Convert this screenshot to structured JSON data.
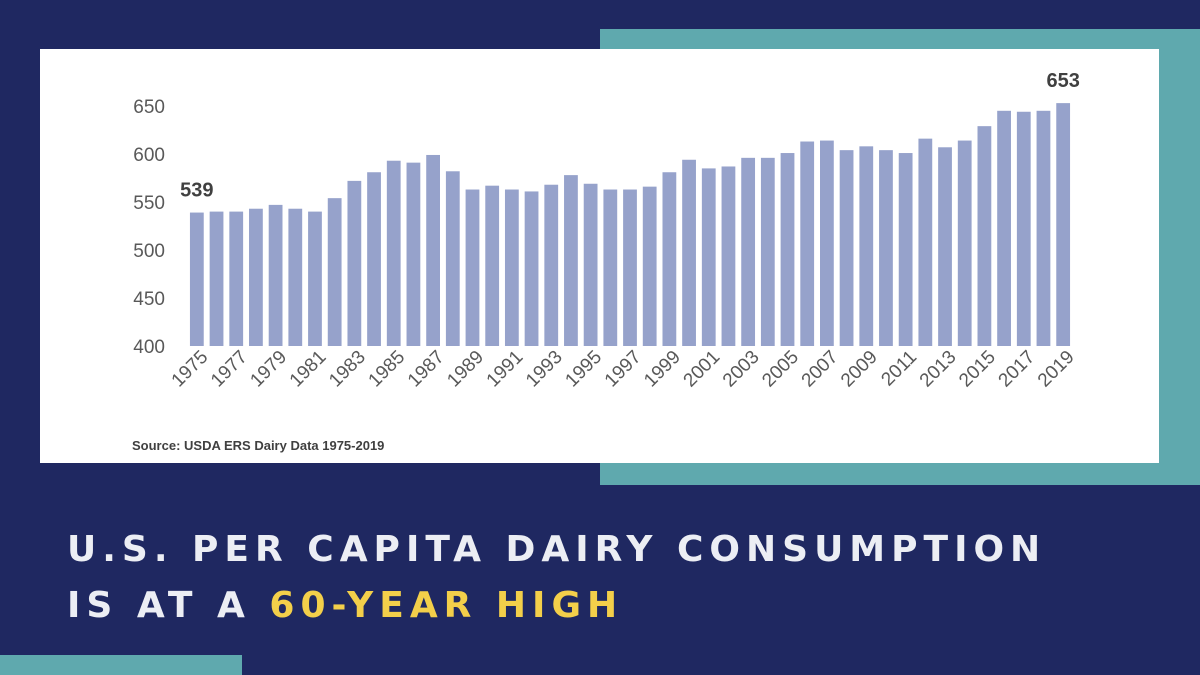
{
  "colors": {
    "background": "#1f2861",
    "accent_teal": "#5fa9ae",
    "bar": "#96a2cb",
    "headline_text": "#eceef4",
    "headline_highlight": "#f3cf4a"
  },
  "chart_data": {
    "type": "bar",
    "categories": [
      "1975",
      "1976",
      "1977",
      "1978",
      "1979",
      "1980",
      "1981",
      "1982",
      "1983",
      "1984",
      "1985",
      "1986",
      "1987",
      "1988",
      "1989",
      "1990",
      "1991",
      "1992",
      "1993",
      "1994",
      "1995",
      "1996",
      "1997",
      "1998",
      "1999",
      "2000",
      "2001",
      "2002",
      "2003",
      "2004",
      "2005",
      "2006",
      "2007",
      "2008",
      "2009",
      "2010",
      "2011",
      "2012",
      "2013",
      "2014",
      "2015",
      "2016",
      "2017",
      "2018",
      "2019"
    ],
    "tick_labels": [
      "1975",
      "1977",
      "1979",
      "1981",
      "1983",
      "1985",
      "1987",
      "1989",
      "1991",
      "1993",
      "1995",
      "1997",
      "1999",
      "2001",
      "2003",
      "2005",
      "2007",
      "2009",
      "2011",
      "2013",
      "2015",
      "2017",
      "2019"
    ],
    "values": [
      539,
      540,
      540,
      543,
      547,
      543,
      540,
      554,
      572,
      581,
      593,
      591,
      599,
      582,
      563,
      567,
      563,
      561,
      568,
      578,
      569,
      563,
      563,
      566,
      581,
      594,
      585,
      587,
      596,
      596,
      601,
      613,
      614,
      604,
      608,
      604,
      601,
      616,
      607,
      614,
      629,
      645,
      644,
      645,
      653
    ],
    "ylim": [
      400,
      650
    ],
    "yticks": [
      400,
      450,
      500,
      550,
      600,
      650
    ],
    "annotations": [
      {
        "category": "1975",
        "label": "539"
      },
      {
        "category": "2019",
        "label": "653"
      }
    ],
    "grid": false,
    "legend": "none"
  },
  "source": "Source: USDA ERS Dairy Data 1975-2019",
  "headline": {
    "line1": "U.S. PER CAPITA DAIRY CONSUMPTION",
    "line2_prefix": "IS AT A ",
    "line2_highlight": "60-YEAR HIGH"
  }
}
